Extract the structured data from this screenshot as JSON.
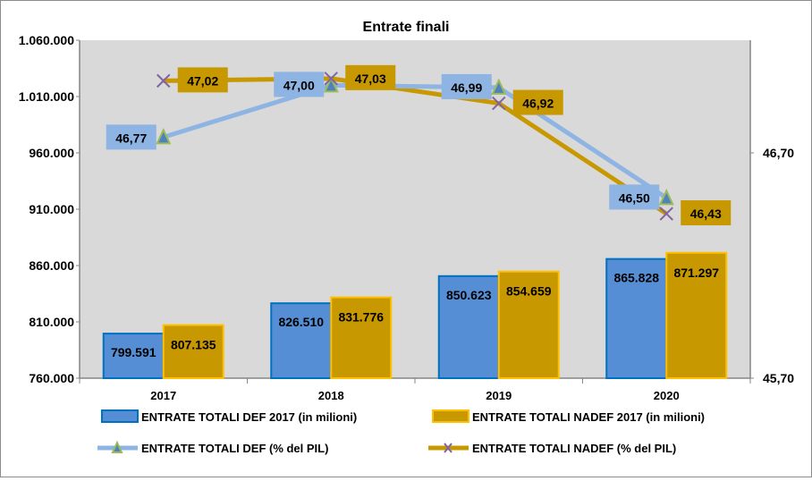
{
  "chart_data": {
    "type": "bar",
    "title": "Entrate finali",
    "categories": [
      "2017",
      "2018",
      "2019",
      "2020"
    ],
    "left_axis": {
      "min": 760000,
      "max": 1060000,
      "step": 50000,
      "tick_labels": [
        "760.000",
        "810.000",
        "860.000",
        "910.000",
        "960.000",
        "1.010.000",
        "1.060.000"
      ]
    },
    "right_axis": {
      "min": 45.7,
      "max": 47.2,
      "tick_values": [
        45.7,
        46.7
      ],
      "tick_labels": [
        "45,70",
        "46,70"
      ]
    },
    "series": [
      {
        "name": "ENTRATE TOTALI DEF 2017 (in milioni)",
        "type": "bar",
        "axis": "left",
        "values": [
          799591,
          826510,
          850623,
          865828
        ],
        "labels": [
          "799.591",
          "826.510",
          "850.623",
          "865.828"
        ],
        "color": "#558ed5",
        "border": "#0070c0"
      },
      {
        "name": "ENTRATE TOTALI NADEF 2017 (in milioni)",
        "type": "bar",
        "axis": "left",
        "values": [
          807135,
          831776,
          854659,
          871297
        ],
        "labels": [
          "807.135",
          "831.776",
          "854.659",
          "871.297"
        ],
        "color": "#c89800",
        "border": "#ffc000"
      },
      {
        "name": "ENTRATE TOTALI DEF (% del PIL)",
        "type": "line",
        "axis": "right",
        "marker": "triangle",
        "values": [
          46.77,
          47.0,
          46.99,
          46.5
        ],
        "labels": [
          "46,77",
          "47,00",
          "46,99",
          "46,50"
        ],
        "color": "#8db4e2",
        "marker_color": "#9bbb59"
      },
      {
        "name": "ENTRATE TOTALI NADEF (% del PIL)",
        "type": "line",
        "axis": "right",
        "marker": "x",
        "values": [
          47.02,
          47.03,
          46.92,
          46.43
        ],
        "labels": [
          "47,02",
          "47,03",
          "46,92",
          "46,43"
        ],
        "color": "#c89800",
        "marker_color": "#8064a2"
      }
    ],
    "grid": false,
    "legend_position": "bottom"
  }
}
